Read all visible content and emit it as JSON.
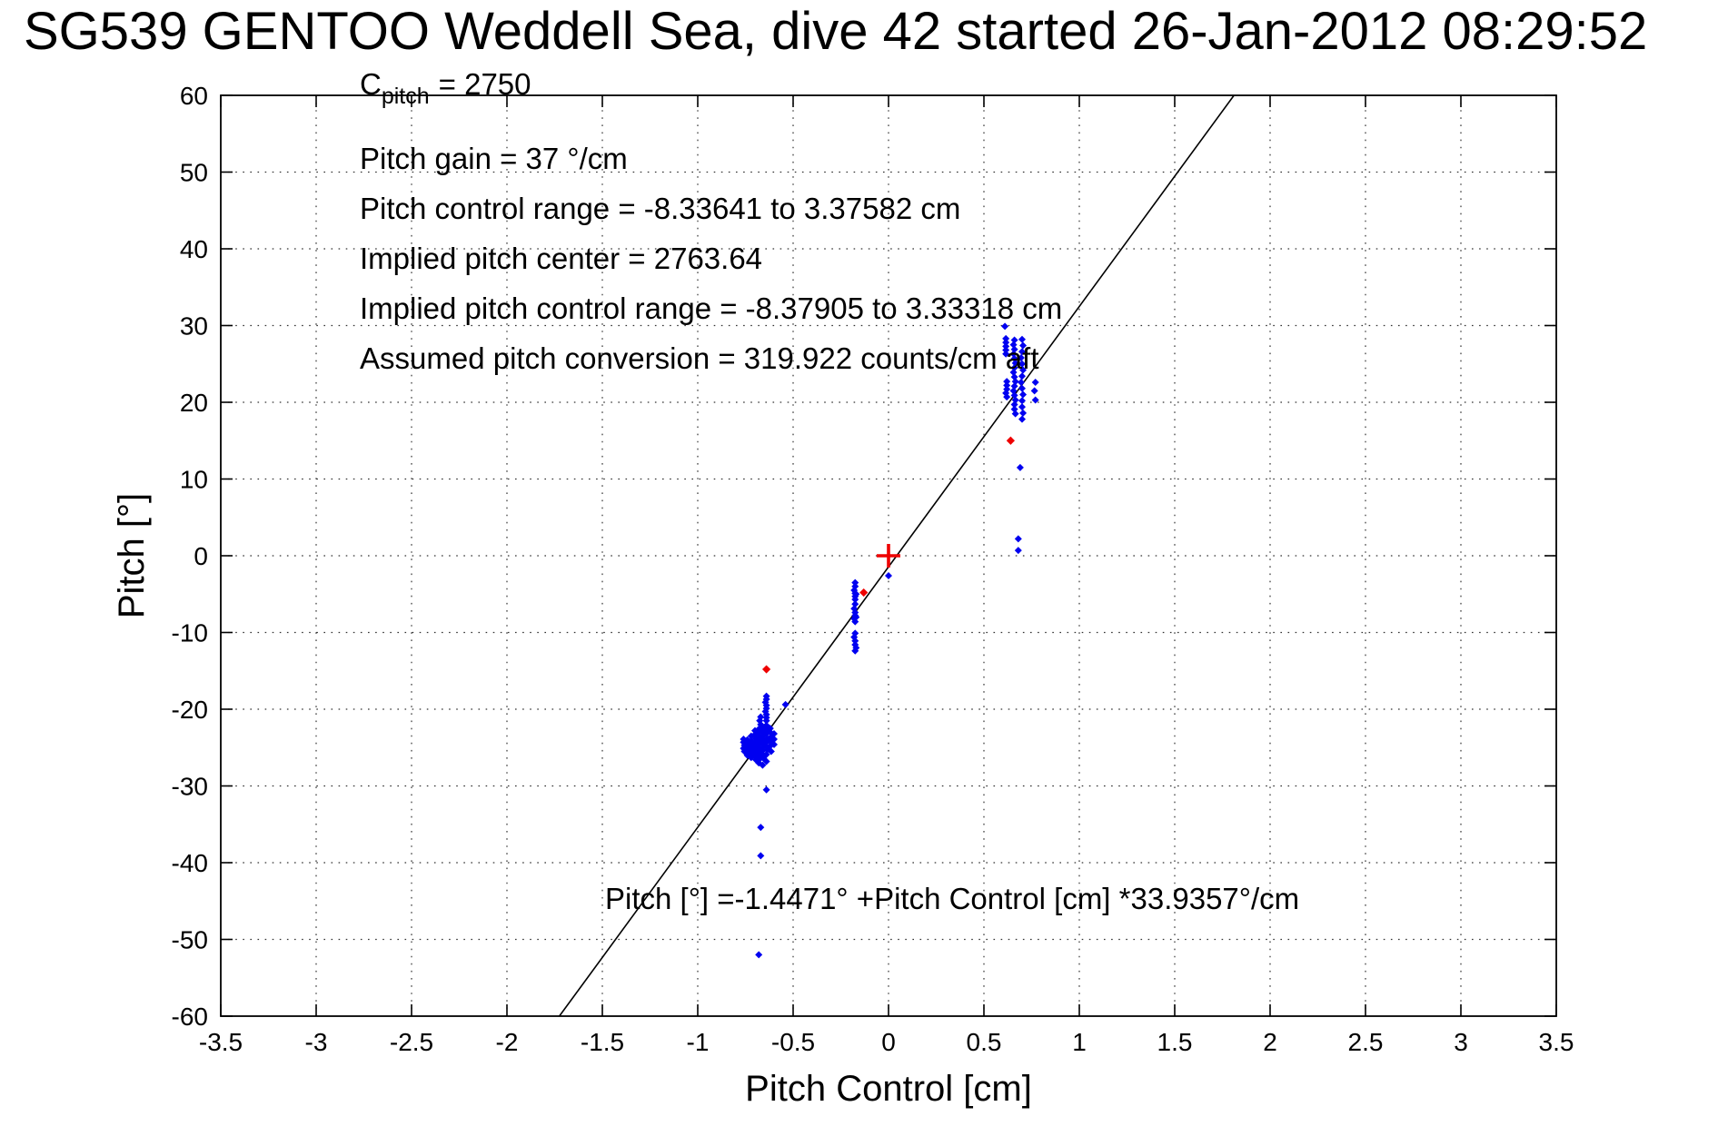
{
  "chart_data": {
    "type": "scatter",
    "title": "SG539 GENTOO Weddell Sea, dive 42 started 26-Jan-2012 08:29:52",
    "xlabel": "Pitch Control [cm]",
    "ylabel": "Pitch [°]",
    "xlim": [
      -3.5,
      3.5
    ],
    "ylim": [
      -60,
      60
    ],
    "grid": "dotted",
    "xtick_values": [
      -3.5,
      -3,
      -2.5,
      -2,
      -1.5,
      -1,
      -0.5,
      0,
      0.5,
      1,
      1.5,
      2,
      2.5,
      3,
      3.5
    ],
    "xtick_labels": [
      "-3.5",
      "-3",
      "-2.5",
      "-2",
      "-1.5",
      "-1",
      "-0.5",
      "0",
      "0.5",
      "1",
      "1.5",
      "2",
      "2.5",
      "3",
      "3.5"
    ],
    "ytick_values": [
      60,
      50,
      40,
      30,
      20,
      10,
      0,
      -10,
      -20,
      -30,
      -40,
      -50,
      -60
    ],
    "ytick_labels": [
      "60",
      "50",
      "40",
      "30",
      "20",
      "10",
      "0",
      "-10",
      "-20",
      "-30",
      "-40",
      "-50",
      "-60"
    ],
    "annotations": {
      "c_prefix": "C",
      "c_subscript": "pitch",
      "c_rest": "= 2750",
      "lines": [
        "Pitch gain = 37 °/cm",
        "Pitch control range = -8.33641 to 3.37582 cm",
        "Implied pitch center = 2763.64",
        "Implied pitch control range = -8.37905 to 3.33318 cm",
        "Assumed pitch conversion = 319.922 counts/cm aft"
      ]
    },
    "fit": {
      "intercept_deg": -1.4471,
      "slope_deg_per_cm": 33.9357,
      "equation_label": "Pitch [°] =-1.4471° +Pitch Control [cm] *33.9357°/cm"
    },
    "colors": {
      "observations": "#0000f0",
      "flagged": "#ee0000",
      "fit_line": "#000000"
    },
    "series": [
      {
        "name": "pitch-observation-point",
        "marker": "diamond",
        "color": "#0000f0",
        "size": 4,
        "points": [
          [
            0.61,
            29.9
          ],
          [
            0.615,
            28.3
          ],
          [
            0.615,
            27.8
          ],
          [
            0.615,
            27.3
          ],
          [
            0.615,
            26.8
          ],
          [
            0.615,
            26.3
          ],
          [
            0.62,
            22.7
          ],
          [
            0.62,
            22.2
          ],
          [
            0.62,
            21.7
          ],
          [
            0.615,
            21.2
          ],
          [
            0.62,
            20.7
          ],
          [
            0.66,
            28.1
          ],
          [
            0.655,
            27.5
          ],
          [
            0.66,
            26.9
          ],
          [
            0.655,
            26.3
          ],
          [
            0.66,
            25.7
          ],
          [
            0.665,
            25.1
          ],
          [
            0.66,
            24.5
          ],
          [
            0.655,
            23.9
          ],
          [
            0.66,
            23.3
          ],
          [
            0.665,
            22.7
          ],
          [
            0.66,
            22.1
          ],
          [
            0.655,
            21.5
          ],
          [
            0.66,
            20.9
          ],
          [
            0.665,
            20.3
          ],
          [
            0.66,
            19.7
          ],
          [
            0.66,
            19.1
          ],
          [
            0.665,
            18.5
          ],
          [
            0.7,
            28.2
          ],
          [
            0.705,
            27.4
          ],
          [
            0.7,
            26.6
          ],
          [
            0.695,
            25.8
          ],
          [
            0.7,
            25.0
          ],
          [
            0.705,
            24.2
          ],
          [
            0.7,
            23.4
          ],
          [
            0.695,
            22.6
          ],
          [
            0.7,
            21.8
          ],
          [
            0.705,
            21.0
          ],
          [
            0.7,
            20.2
          ],
          [
            0.7,
            19.4
          ],
          [
            0.705,
            18.6
          ],
          [
            0.7,
            17.8
          ],
          [
            0.77,
            22.6
          ],
          [
            0.765,
            21.5
          ],
          [
            0.77,
            20.3
          ],
          [
            0.69,
            11.5
          ],
          [
            0.68,
            2.2
          ],
          [
            0.68,
            0.7
          ],
          [
            0.0,
            -2.6
          ],
          [
            -0.175,
            -3.5
          ],
          [
            -0.175,
            -4.0
          ],
          [
            -0.18,
            -4.5
          ],
          [
            -0.175,
            -4.9
          ],
          [
            -0.17,
            -5.0
          ],
          [
            -0.175,
            -5.3
          ],
          [
            -0.175,
            -5.7
          ],
          [
            -0.175,
            -6.3
          ],
          [
            -0.18,
            -6.9
          ],
          [
            -0.175,
            -7.4
          ],
          [
            -0.175,
            -7.8
          ],
          [
            -0.17,
            -8.0
          ],
          [
            -0.18,
            -8.2
          ],
          [
            -0.175,
            -8.6
          ],
          [
            -0.175,
            -10.1
          ],
          [
            -0.18,
            -10.6
          ],
          [
            -0.175,
            -11.1
          ],
          [
            -0.175,
            -11.6
          ],
          [
            -0.17,
            -12.0
          ],
          [
            -0.175,
            -12.4
          ],
          [
            -0.64,
            -18.3
          ],
          [
            -0.64,
            -18.7
          ],
          [
            -0.645,
            -19.1
          ],
          [
            -0.64,
            -19.5
          ],
          [
            -0.64,
            -19.9
          ],
          [
            -0.645,
            -20.3
          ],
          [
            -0.64,
            -20.7
          ],
          [
            -0.64,
            -21.1
          ],
          [
            -0.64,
            -21.5
          ],
          [
            -0.64,
            -22.1
          ],
          [
            -0.54,
            -19.4
          ],
          [
            -0.67,
            -21.0
          ],
          [
            -0.675,
            -21.5
          ],
          [
            -0.67,
            -22.0
          ],
          [
            -0.665,
            -22.4
          ],
          [
            -0.76,
            -23.9
          ],
          [
            -0.76,
            -24.3
          ],
          [
            -0.755,
            -24.7
          ],
          [
            -0.76,
            -25.1
          ],
          [
            -0.755,
            -25.5
          ],
          [
            -0.74,
            -24.0
          ],
          [
            -0.74,
            -24.4
          ],
          [
            -0.735,
            -24.8
          ],
          [
            -0.74,
            -25.2
          ],
          [
            -0.735,
            -25.6
          ],
          [
            -0.74,
            -26.0
          ],
          [
            -0.72,
            -23.5
          ],
          [
            -0.72,
            -24.1
          ],
          [
            -0.715,
            -24.6
          ],
          [
            -0.72,
            -25.0
          ],
          [
            -0.715,
            -25.4
          ],
          [
            -0.72,
            -25.8
          ],
          [
            -0.72,
            -26.3
          ],
          [
            -0.7,
            -22.8
          ],
          [
            -0.7,
            -23.3
          ],
          [
            -0.695,
            -23.8
          ],
          [
            -0.7,
            -24.3
          ],
          [
            -0.7,
            -24.9
          ],
          [
            -0.695,
            -25.3
          ],
          [
            -0.7,
            -25.7
          ],
          [
            -0.7,
            -26.1
          ],
          [
            -0.695,
            -26.6
          ],
          [
            -0.68,
            -22.6
          ],
          [
            -0.68,
            -23.1
          ],
          [
            -0.675,
            -23.6
          ],
          [
            -0.68,
            -24.1
          ],
          [
            -0.68,
            -24.6
          ],
          [
            -0.675,
            -25.1
          ],
          [
            -0.68,
            -25.6
          ],
          [
            -0.68,
            -26.1
          ],
          [
            -0.675,
            -26.5
          ],
          [
            -0.68,
            -27.0
          ],
          [
            -0.66,
            -22.4
          ],
          [
            -0.66,
            -22.9
          ],
          [
            -0.655,
            -23.4
          ],
          [
            -0.66,
            -23.9
          ],
          [
            -0.66,
            -24.4
          ],
          [
            -0.655,
            -24.9
          ],
          [
            -0.66,
            -25.4
          ],
          [
            -0.66,
            -25.9
          ],
          [
            -0.655,
            -26.4
          ],
          [
            -0.66,
            -27.3
          ],
          [
            -0.64,
            -22.7
          ],
          [
            -0.64,
            -23.2
          ],
          [
            -0.635,
            -23.8
          ],
          [
            -0.64,
            -24.3
          ],
          [
            -0.64,
            -24.8
          ],
          [
            -0.635,
            -25.3
          ],
          [
            -0.64,
            -25.9
          ],
          [
            -0.64,
            -26.8
          ],
          [
            -0.62,
            -22.5
          ],
          [
            -0.62,
            -23.0
          ],
          [
            -0.615,
            -23.6
          ],
          [
            -0.62,
            -24.2
          ],
          [
            -0.62,
            -24.8
          ],
          [
            -0.615,
            -25.5
          ],
          [
            -0.6,
            -23.2
          ],
          [
            -0.6,
            -23.9
          ],
          [
            -0.6,
            -24.6
          ],
          [
            -0.64,
            -30.5
          ],
          [
            -0.67,
            -35.4
          ],
          [
            -0.67,
            -39.1
          ],
          [
            -0.68,
            -52.0
          ]
        ]
      },
      {
        "name": "flagged-observation-point",
        "marker": "diamond",
        "color": "#ee0000",
        "size": 4.6,
        "points": [
          [
            0.64,
            15.0
          ],
          [
            -0.13,
            -4.8
          ],
          [
            -0.64,
            -14.8
          ]
        ]
      },
      {
        "name": "origin-plus-marker",
        "marker": "plus",
        "color": "#ee0000",
        "size": 13,
        "points": [
          [
            0,
            0
          ]
        ]
      }
    ]
  }
}
